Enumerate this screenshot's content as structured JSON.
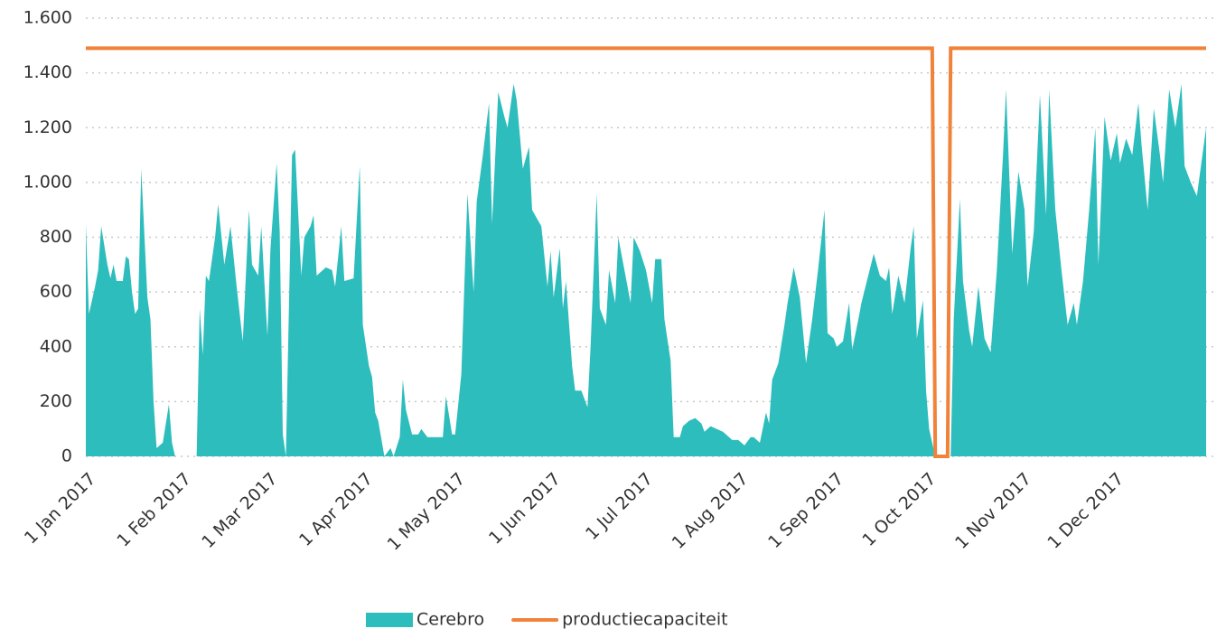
{
  "chart_data": {
    "type": "area",
    "xlim": [
      "2017-01-01",
      "2017-12-31"
    ],
    "xticks": [
      {
        "value": "2017-01-01",
        "label": "1 Jan 2017"
      },
      {
        "value": "2017-02-01",
        "label": "1 Feb 2017"
      },
      {
        "value": "2017-03-01",
        "label": "1 Mar 2017"
      },
      {
        "value": "2017-04-01",
        "label": "1 Apr 2017"
      },
      {
        "value": "2017-05-01",
        "label": "1 May 2017"
      },
      {
        "value": "2017-06-01",
        "label": "1 Jun 2017"
      },
      {
        "value": "2017-07-01",
        "label": "1 Jul 2017"
      },
      {
        "value": "2017-08-01",
        "label": "1 Aug 2017"
      },
      {
        "value": "2017-09-01",
        "label": "1 Sep 2017"
      },
      {
        "value": "2017-10-01",
        "label": "1 Oct 2017"
      },
      {
        "value": "2017-11-01",
        "label": "1 Nov 2017"
      },
      {
        "value": "2017-12-01",
        "label": "1 Dec 2017"
      }
    ],
    "ylim": [
      0,
      1600
    ],
    "yticks": [
      0,
      200,
      400,
      600,
      800,
      {
        "value": 1000,
        "label": "1.000"
      },
      {
        "value": 1200,
        "label": "1.200"
      },
      {
        "value": 1400,
        "label": "1.400"
      },
      {
        "value": 1600,
        "label": "1.600"
      }
    ],
    "grid": true,
    "legend": "bottom",
    "series": [
      {
        "name": "Cerebro",
        "type": "area",
        "color": "#2ebdbd",
        "x": [
          "2017-01-01",
          "2017-01-02",
          "2017-01-04",
          "2017-01-05",
          "2017-01-06",
          "2017-01-08",
          "2017-01-09",
          "2017-01-10",
          "2017-01-11",
          "2017-01-13",
          "2017-01-14",
          "2017-01-15",
          "2017-01-16",
          "2017-01-17",
          "2017-01-18",
          "2017-01-19",
          "2017-01-21",
          "2017-01-22",
          "2017-01-23",
          "2017-01-24",
          "2017-01-26",
          "2017-01-28",
          "2017-01-29",
          "2017-01-30",
          "2017-02-06",
          "2017-02-07",
          "2017-02-08",
          "2017-02-09",
          "2017-02-10",
          "2017-02-12",
          "2017-02-13",
          "2017-02-15",
          "2017-02-17",
          "2017-02-19",
          "2017-02-21",
          "2017-02-23",
          "2017-02-24",
          "2017-02-26",
          "2017-02-27",
          "2017-03-01",
          "2017-03-02",
          "2017-03-04",
          "2017-03-05",
          "2017-03-06",
          "2017-03-07",
          "2017-03-09",
          "2017-03-10",
          "2017-03-12",
          "2017-03-13",
          "2017-03-15",
          "2017-03-16",
          "2017-03-17",
          "2017-03-20",
          "2017-03-22",
          "2017-03-23",
          "2017-03-25",
          "2017-03-26",
          "2017-03-29",
          "2017-03-31",
          "2017-04-01",
          "2017-04-03",
          "2017-04-04",
          "2017-04-05",
          "2017-04-06",
          "2017-04-08",
          "2017-04-10",
          "2017-04-11",
          "2017-04-13",
          "2017-04-14",
          "2017-04-15",
          "2017-04-17",
          "2017-04-19",
          "2017-04-20",
          "2017-04-22",
          "2017-04-27",
          "2017-04-28",
          "2017-04-30",
          "2017-05-01",
          "2017-05-03",
          "2017-05-05",
          "2017-05-07",
          "2017-05-08",
          "2017-05-10",
          "2017-05-12",
          "2017-05-13",
          "2017-05-15",
          "2017-05-17",
          "2017-05-18",
          "2017-05-20",
          "2017-05-21",
          "2017-05-23",
          "2017-05-25",
          "2017-05-26",
          "2017-05-28",
          "2017-05-29",
          "2017-05-31",
          "2017-06-01",
          "2017-06-02",
          "2017-06-04",
          "2017-06-05",
          "2017-06-06",
          "2017-06-08",
          "2017-06-09",
          "2017-06-11",
          "2017-06-13",
          "2017-06-14",
          "2017-06-16",
          "2017-06-17",
          "2017-06-19",
          "2017-06-20",
          "2017-06-22",
          "2017-06-23",
          "2017-06-25",
          "2017-06-27",
          "2017-06-28",
          "2017-06-30",
          "2017-07-02",
          "2017-07-04",
          "2017-07-05",
          "2017-07-07",
          "2017-07-08",
          "2017-07-10",
          "2017-07-11",
          "2017-07-13",
          "2017-07-14",
          "2017-07-16",
          "2017-07-18",
          "2017-07-20",
          "2017-07-21",
          "2017-07-23",
          "2017-07-25",
          "2017-07-27",
          "2017-07-29",
          "2017-07-30",
          "2017-08-01",
          "2017-08-03",
          "2017-08-05",
          "2017-08-06",
          "2017-08-08",
          "2017-08-10",
          "2017-08-11",
          "2017-08-12",
          "2017-08-14",
          "2017-08-16",
          "2017-08-17",
          "2017-08-19",
          "2017-08-21",
          "2017-08-23",
          "2017-08-25",
          "2017-08-27",
          "2017-08-29",
          "2017-08-30",
          "2017-09-01",
          "2017-09-02",
          "2017-09-04",
          "2017-09-06",
          "2017-09-07",
          "2017-09-09",
          "2017-09-10",
          "2017-09-12",
          "2017-09-14",
          "2017-09-16",
          "2017-09-18",
          "2017-09-19",
          "2017-09-20",
          "2017-09-22",
          "2017-09-24",
          "2017-09-26",
          "2017-09-27",
          "2017-09-28",
          "2017-09-30",
          "2017-10-01",
          "2017-10-02",
          "2017-10-04",
          "2017-10-09",
          "2017-10-10",
          "2017-10-12",
          "2017-10-13",
          "2017-10-15",
          "2017-10-16",
          "2017-10-18",
          "2017-10-20",
          "2017-10-22",
          "2017-10-24",
          "2017-10-26",
          "2017-10-27",
          "2017-10-29",
          "2017-10-31",
          "2017-11-02",
          "2017-11-03",
          "2017-11-05",
          "2017-11-07",
          "2017-11-09",
          "2017-11-10",
          "2017-11-12",
          "2017-11-14",
          "2017-11-16",
          "2017-11-18",
          "2017-11-19",
          "2017-11-21",
          "2017-11-23",
          "2017-11-25",
          "2017-11-26",
          "2017-11-28",
          "2017-11-30",
          "2017-12-02",
          "2017-12-03",
          "2017-12-05",
          "2017-12-07",
          "2017-12-09",
          "2017-12-10",
          "2017-12-12",
          "2017-12-14",
          "2017-12-16",
          "2017-12-17",
          "2017-12-19",
          "2017-12-21",
          "2017-12-23",
          "2017-12-24",
          "2017-12-26",
          "2017-12-28",
          "2017-12-31"
        ],
        "values": [
          850,
          520,
          620,
          680,
          840,
          700,
          650,
          700,
          640,
          640,
          730,
          720,
          600,
          520,
          540,
          1050,
          580,
          500,
          200,
          30,
          50,
          190,
          50,
          0,
          0,
          540,
          370,
          660,
          640,
          800,
          920,
          700,
          840,
          620,
          420,
          900,
          700,
          660,
          840,
          440,
          760,
          1070,
          820,
          80,
          0,
          1100,
          1120,
          660,
          800,
          840,
          880,
          660,
          690,
          680,
          620,
          840,
          640,
          650,
          1060,
          480,
          330,
          290,
          160,
          130,
          0,
          30,
          0,
          70,
          280,
          170,
          80,
          80,
          100,
          70,
          70,
          220,
          80,
          80,
          300,
          960,
          600,
          930,
          1100,
          1290,
          850,
          1330,
          1240,
          1200,
          1360,
          1300,
          1050,
          1130,
          900,
          860,
          840,
          620,
          750,
          580,
          760,
          540,
          640,
          330,
          240,
          240,
          180,
          400,
          960,
          540,
          480,
          680,
          560,
          800,
          680,
          560,
          800,
          750,
          680,
          560,
          720,
          720,
          500,
          350,
          70,
          70,
          110,
          130,
          140,
          120,
          90,
          110,
          100,
          90,
          70,
          60,
          60,
          40,
          70,
          70,
          50,
          160,
          120,
          280,
          340,
          480,
          560,
          690,
          580,
          340,
          500,
          690,
          900,
          450,
          430,
          400,
          420,
          560,
          390,
          500,
          560,
          650,
          740,
          660,
          640,
          690,
          520,
          660,
          560,
          760,
          840,
          430,
          570,
          240,
          100,
          0,
          0,
          500,
          940,
          640,
          460,
          400,
          620,
          430,
          380,
          680,
          1100,
          1340,
          740,
          1040,
          900,
          620,
          820,
          1320,
          880,
          1340,
          900,
          680,
          480,
          560,
          480,
          640,
          900,
          1200,
          700,
          1240,
          1080,
          1180,
          1070,
          1160,
          1100,
          1290,
          1140,
          900,
          1270,
          1100,
          1000,
          1340,
          1200,
          1360,
          1060,
          1000,
          950,
          1200
        ]
      },
      {
        "name": "productiecapaciteit",
        "type": "line",
        "color": "#f0823a",
        "x": [
          "2017-01-01",
          "2017-10-03",
          "2017-10-04",
          "2017-10-08",
          "2017-10-09",
          "2017-12-31"
        ],
        "values": [
          1490,
          1490,
          0,
          0,
          1490,
          1490
        ]
      }
    ]
  }
}
